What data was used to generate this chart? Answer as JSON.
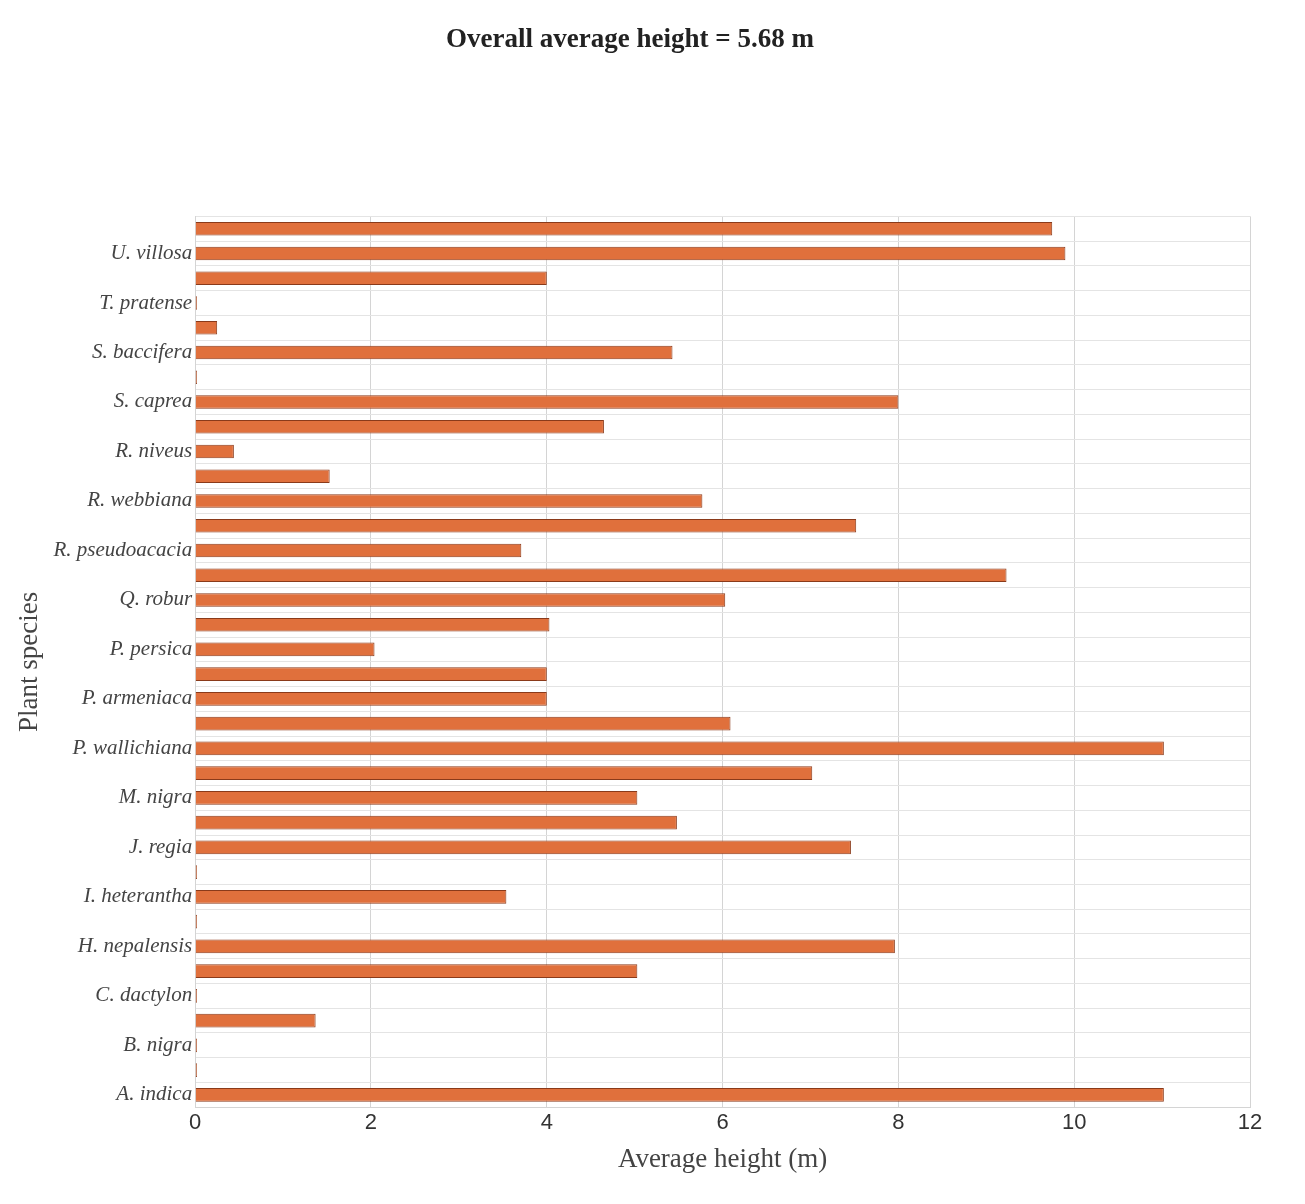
{
  "chart_data": {
    "type": "bar",
    "orientation": "horizontal",
    "title": "Overall average height = 5.68 m",
    "xlabel": "Average height (m)",
    "ylabel": "Plant species",
    "categories": [
      null,
      "U. villosa",
      null,
      "T. pratense",
      null,
      "S. baccifera",
      null,
      "S. caprea",
      null,
      "R. niveus",
      null,
      "R. webbiana",
      null,
      "R. pseudoacacia",
      null,
      "Q. robur",
      null,
      "P. persica",
      null,
      "P. armeniaca",
      null,
      "P. wallichiana",
      null,
      "M. nigra",
      null,
      "J. regia",
      null,
      "I. heterantha",
      null,
      "H. nepalensis",
      null,
      "C. dactylon",
      null,
      "B. nigra",
      null,
      "A. indica"
    ],
    "values": [
      9.75,
      9.9,
      4,
      0.02,
      0.25,
      5.43,
      0.02,
      8,
      4.65,
      0.44,
      1.53,
      5.77,
      7.52,
      3.71,
      9.23,
      6.03,
      4.03,
      2.04,
      4,
      4,
      6.09,
      11.02,
      7.02,
      5.03,
      5.48,
      7.46,
      0.02,
      3.54,
      0.02,
      7.96,
      5.03,
      0.02,
      1.37,
      0.02,
      0.02,
      11.02
    ],
    "color": "#e0703c",
    "xlim": [
      0,
      12
    ],
    "xticks": [
      0,
      2,
      4,
      6,
      8,
      10,
      12
    ],
    "grid": true
  }
}
